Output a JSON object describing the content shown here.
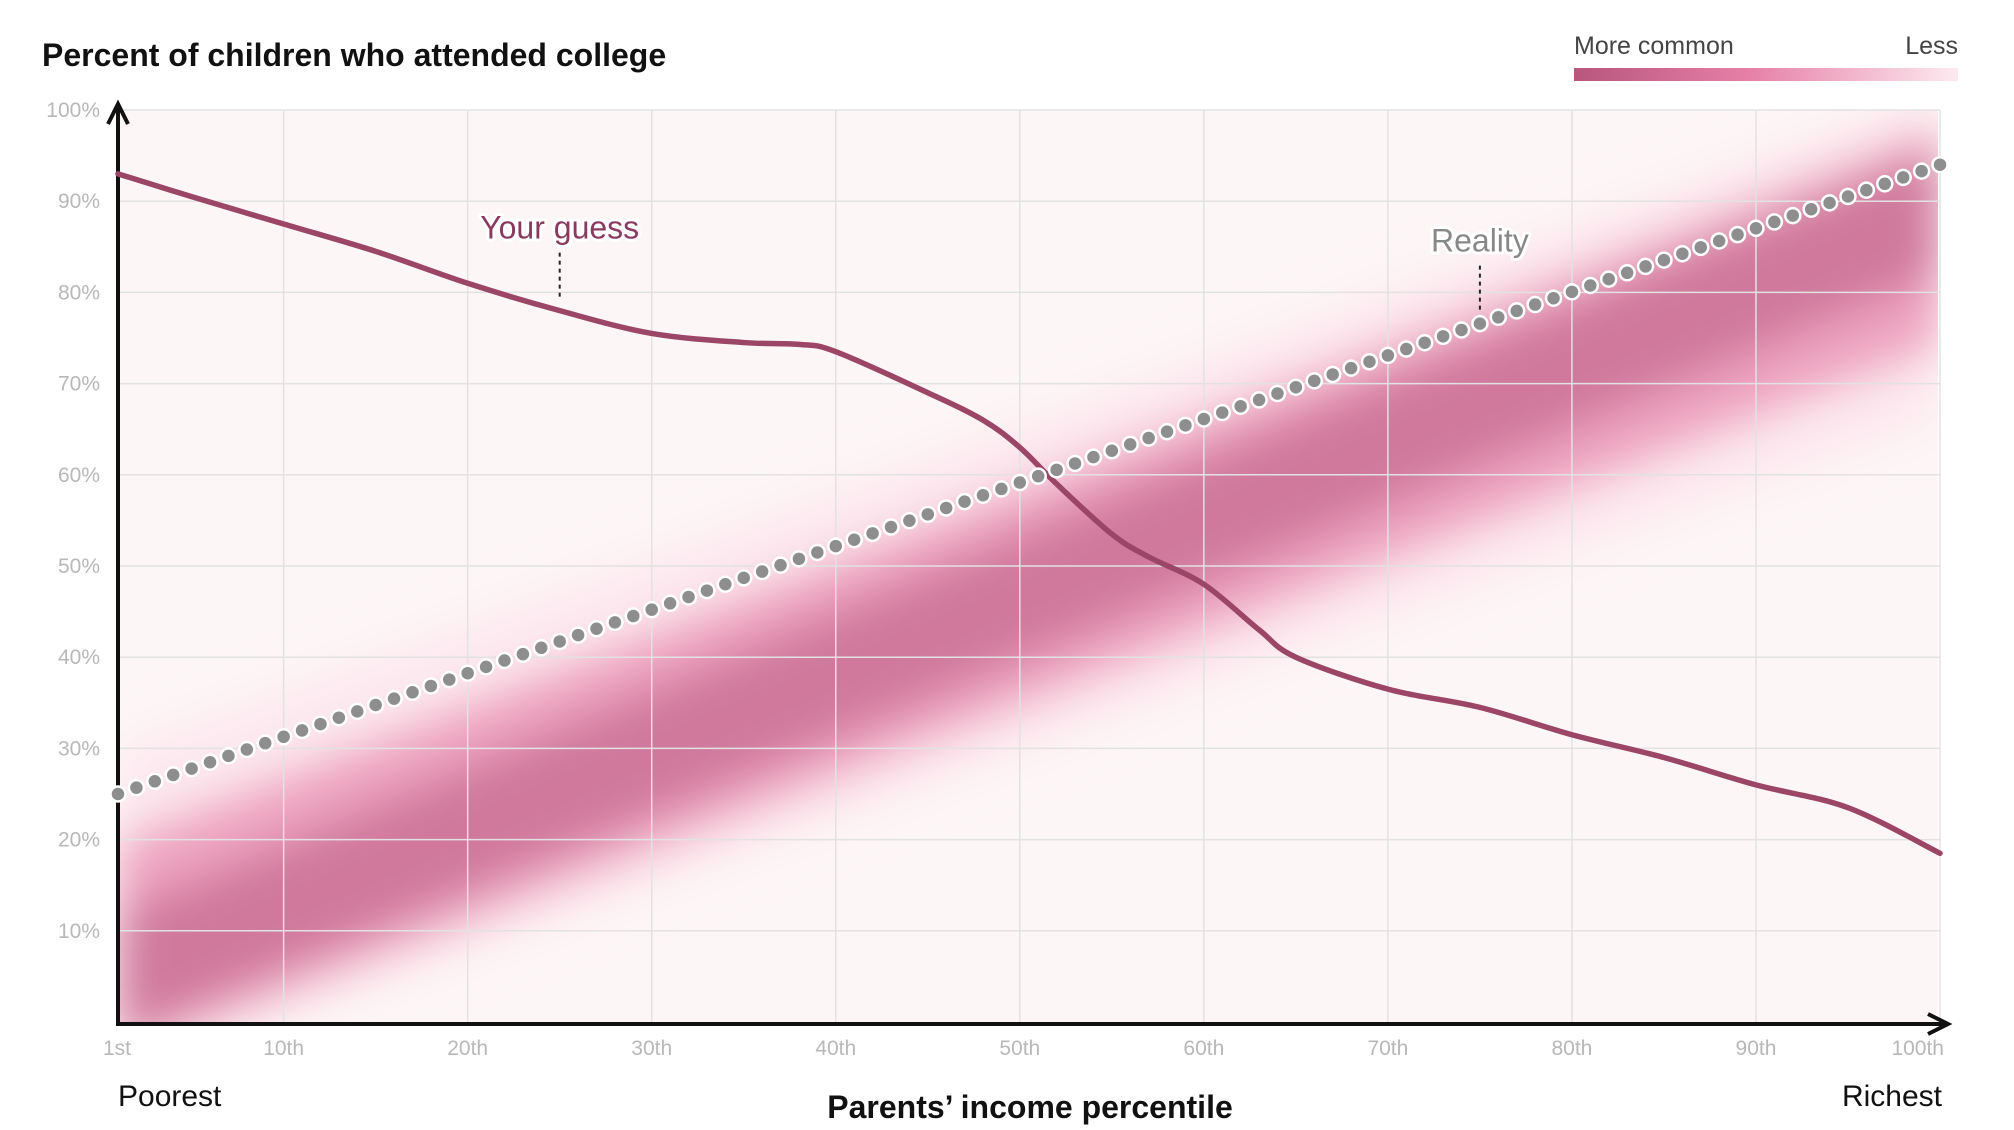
{
  "chart_data": {
    "type": "line",
    "title": "Percent of children who attended college",
    "xlabel": "Parents’ income percentile",
    "x_left_label": "Poorest",
    "x_right_label": "Richest",
    "legend": {
      "more_label": "More common",
      "less_label": "Less",
      "gradient_colors": [
        "#b8567e",
        "#e67fa6",
        "#fde6ee"
      ]
    },
    "xlim": [
      1,
      100
    ],
    "ylim": [
      0,
      100
    ],
    "x_ticks": [
      1,
      10,
      20,
      30,
      40,
      50,
      60,
      70,
      80,
      90,
      100
    ],
    "x_tick_labels": [
      "1st",
      "10th",
      "20th",
      "30th",
      "40th",
      "50th",
      "60th",
      "70th",
      "80th",
      "90th",
      "100th"
    ],
    "y_ticks": [
      10,
      20,
      30,
      40,
      50,
      60,
      70,
      80,
      90,
      100
    ],
    "y_tick_labels": [
      "10%",
      "20%",
      "30%",
      "40%",
      "50%",
      "60%",
      "70%",
      "80%",
      "90%",
      "100%"
    ],
    "grid": true,
    "series": [
      {
        "name": "Your guess",
        "style": "line",
        "color": "#9b4567",
        "points": [
          [
            1,
            93
          ],
          [
            5,
            90.5
          ],
          [
            10,
            87.5
          ],
          [
            15,
            84.5
          ],
          [
            20,
            81
          ],
          [
            25,
            78
          ],
          [
            30,
            75.5
          ],
          [
            35,
            74.5
          ],
          [
            38,
            74.3
          ],
          [
            40,
            73.5
          ],
          [
            45,
            69
          ],
          [
            48,
            66
          ],
          [
            50,
            63
          ],
          [
            52,
            59
          ],
          [
            55,
            53.5
          ],
          [
            57,
            51
          ],
          [
            60,
            48
          ],
          [
            63,
            43
          ],
          [
            65,
            40
          ],
          [
            70,
            36.5
          ],
          [
            75,
            34.5
          ],
          [
            80,
            31.5
          ],
          [
            85,
            29
          ],
          [
            90,
            26
          ],
          [
            95,
            23.5
          ],
          [
            100,
            18.5
          ]
        ]
      },
      {
        "name": "Reality",
        "style": "dots",
        "color": "#8e8e8e",
        "x_start": 1,
        "x_end": 100,
        "y_start": 25,
        "y_end": 94
      }
    ],
    "annotations": [
      {
        "text": "Your guess",
        "series": "Your guess",
        "color": "#8a3a5e",
        "x": 25
      },
      {
        "text": "Reality",
        "series": "Reality",
        "color": "#888888",
        "x": 75
      }
    ]
  }
}
